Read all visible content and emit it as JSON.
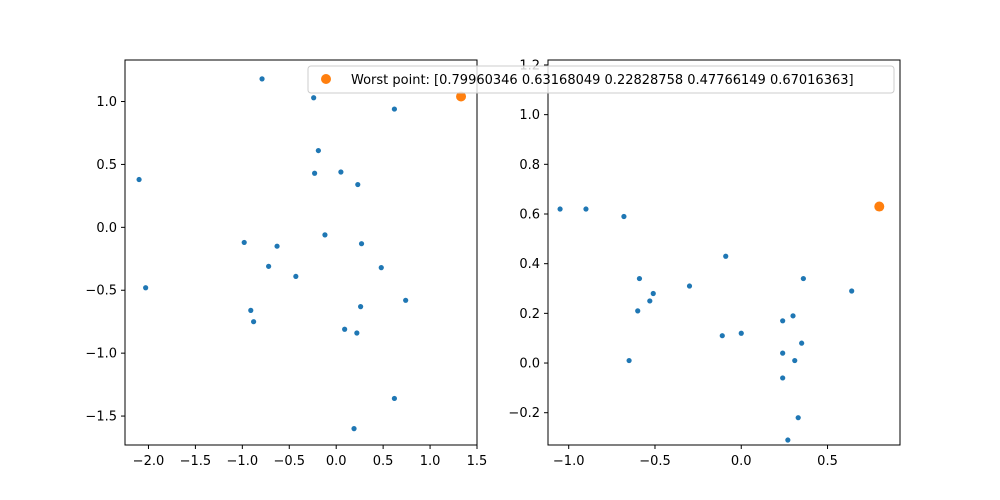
{
  "colors": {
    "points": "#1f77b4",
    "worst": "#ff7f0e"
  },
  "legend": {
    "label": "Worst point: [0.79960346 0.63168049 0.22828758 0.47766149 0.67016363]",
    "placement": "upper-right"
  },
  "chart_data": [
    {
      "type": "scatter",
      "xlim": [
        -2.25,
        1.5
      ],
      "ylim": [
        -1.73,
        1.33
      ],
      "x_ticks": [
        -2.0,
        -1.5,
        -1.0,
        -0.5,
        0.0,
        0.5,
        1.0,
        1.5
      ],
      "x_tick_labels": [
        "−2.0",
        "−1.5",
        "−1.0",
        "−0.5",
        "0.0",
        "0.5",
        "1.0",
        "1.5"
      ],
      "y_ticks": [
        -1.5,
        -1.0,
        -0.5,
        0.0,
        0.5,
        1.0
      ],
      "y_tick_labels": [
        "−1.5",
        "−1.0",
        "−0.5",
        "0.0",
        "0.5",
        "1.0"
      ],
      "series": [
        {
          "role": "points",
          "x": [
            -0.79,
            -0.24,
            0.62,
            -0.19,
            -2.1,
            0.05,
            -0.23,
            0.23,
            -2.03,
            -0.98,
            -0.63,
            -0.12,
            0.27,
            -0.72,
            0.48,
            -0.43,
            0.74,
            -0.91,
            0.26,
            -0.88,
            0.09,
            0.22,
            0.62,
            0.19
          ],
          "y": [
            1.18,
            1.03,
            0.94,
            0.61,
            0.38,
            0.44,
            0.43,
            0.34,
            -0.48,
            -0.12,
            -0.15,
            -0.06,
            -0.13,
            -0.31,
            -0.32,
            -0.39,
            -0.58,
            -0.66,
            -0.63,
            -0.75,
            -0.81,
            -0.84,
            -1.36,
            -1.6
          ]
        },
        {
          "role": "worst",
          "name": "Worst point: [0.79960346 0.63168049 0.22828758 0.47766149 0.67016363]",
          "x": [
            1.33
          ],
          "y": [
            1.04
          ]
        }
      ]
    },
    {
      "type": "scatter",
      "xlim": [
        -1.12,
        0.92
      ],
      "ylim": [
        -0.33,
        1.22
      ],
      "x_ticks": [
        -1.0,
        -0.5,
        0.0,
        0.5
      ],
      "x_tick_labels": [
        "−1.0",
        "−0.5",
        "0.0",
        "0.5"
      ],
      "y_ticks": [
        -0.2,
        0.0,
        0.2,
        0.4,
        0.6,
        0.8,
        1.0,
        1.2
      ],
      "y_tick_labels": [
        "−0.2",
        "0.0",
        "0.2",
        "0.4",
        "0.6",
        "0.8",
        "1.0",
        "1.2"
      ],
      "series": [
        {
          "role": "points",
          "x": [
            -1.05,
            -0.9,
            -0.68,
            -0.09,
            -0.59,
            -0.51,
            -0.3,
            -0.53,
            0.36,
            0.64,
            -0.6,
            -0.11,
            0.0,
            0.3,
            0.24,
            0.35,
            0.24,
            0.31,
            -0.65,
            0.24,
            0.33,
            0.27
          ],
          "y": [
            0.62,
            0.62,
            0.59,
            0.43,
            0.34,
            0.28,
            0.31,
            0.25,
            0.34,
            0.29,
            0.21,
            0.11,
            0.12,
            0.19,
            0.17,
            0.08,
            0.04,
            0.01,
            0.01,
            -0.06,
            -0.22,
            -0.31
          ]
        },
        {
          "role": "worst",
          "name": "Worst point: [0.79960346 0.63168049 0.22828758 0.47766149 0.67016363]",
          "x": [
            0.8
          ],
          "y": [
            0.63
          ]
        }
      ]
    }
  ]
}
